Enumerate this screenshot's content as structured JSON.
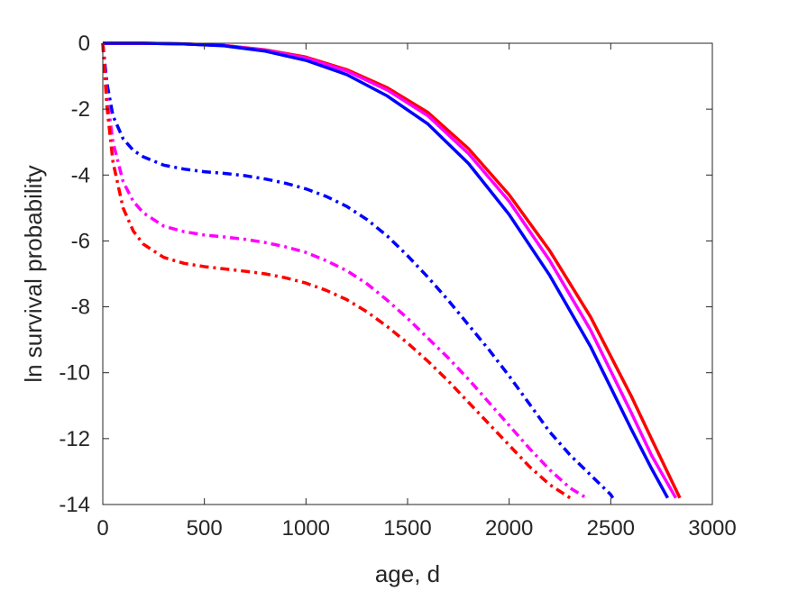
{
  "chart_data": {
    "type": "line",
    "title": "",
    "xlabel": "age, d",
    "ylabel": "ln survival probability",
    "xlim": [
      0,
      3000
    ],
    "ylim": [
      -14,
      0
    ],
    "xticks": [
      0,
      500,
      1000,
      1500,
      2000,
      2500,
      3000
    ],
    "yticks": [
      0,
      -2,
      -4,
      -6,
      -8,
      -10,
      -12,
      -14
    ],
    "grid": false,
    "legend": "none",
    "series": [
      {
        "color": "#ff0000",
        "style": "solid",
        "x": [
          0,
          200,
          400,
          600,
          800,
          1000,
          1200,
          1400,
          1600,
          1800,
          2000,
          2200,
          2400,
          2600,
          2700,
          2840
        ],
        "y": [
          0,
          0,
          -0.02,
          -0.07,
          -0.2,
          -0.42,
          -0.8,
          -1.35,
          -2.1,
          -3.2,
          -4.6,
          -6.3,
          -8.3,
          -10.7,
          -12.0,
          -13.8
        ]
      },
      {
        "color": "#ff00ff",
        "style": "solid",
        "x": [
          0,
          200,
          400,
          600,
          800,
          1000,
          1200,
          1400,
          1600,
          1800,
          2000,
          2200,
          2400,
          2600,
          2700,
          2820
        ],
        "y": [
          0,
          0,
          -0.02,
          -0.07,
          -0.21,
          -0.45,
          -0.84,
          -1.42,
          -2.2,
          -3.35,
          -4.8,
          -6.6,
          -8.7,
          -11.2,
          -12.5,
          -13.8
        ]
      },
      {
        "color": "#0000ff",
        "style": "solid",
        "x": [
          0,
          200,
          400,
          600,
          800,
          1000,
          1200,
          1400,
          1600,
          1800,
          2000,
          2200,
          2400,
          2600,
          2700,
          2780
        ],
        "y": [
          0,
          0,
          -0.02,
          -0.08,
          -0.24,
          -0.52,
          -0.95,
          -1.6,
          -2.45,
          -3.65,
          -5.2,
          -7.05,
          -9.2,
          -11.7,
          -12.9,
          -13.8
        ]
      },
      {
        "color": "#0000ff",
        "style": "dashdot",
        "x": [
          0,
          20,
          50,
          100,
          150,
          200,
          300,
          400,
          500,
          600,
          700,
          800,
          900,
          1000,
          1100,
          1200,
          1300,
          1400,
          1500,
          1600,
          1700,
          1800,
          1900,
          2000,
          2100,
          2200,
          2300,
          2400,
          2500,
          2510
        ],
        "y": [
          0,
          -1.2,
          -2.2,
          -2.9,
          -3.25,
          -3.45,
          -3.7,
          -3.82,
          -3.9,
          -3.95,
          -4.02,
          -4.12,
          -4.25,
          -4.42,
          -4.65,
          -4.95,
          -5.35,
          -5.85,
          -6.45,
          -7.1,
          -7.8,
          -8.55,
          -9.3,
          -10.1,
          -10.95,
          -11.8,
          -12.5,
          -13.1,
          -13.7,
          -13.8
        ]
      },
      {
        "color": "#ff00ff",
        "style": "dashdot",
        "x": [
          0,
          20,
          50,
          100,
          150,
          200,
          300,
          400,
          500,
          600,
          700,
          800,
          900,
          1000,
          1100,
          1200,
          1300,
          1400,
          1500,
          1600,
          1700,
          1800,
          1900,
          2000,
          2100,
          2200,
          2300,
          2380
        ],
        "y": [
          0,
          -1.6,
          -3.0,
          -4.2,
          -4.8,
          -5.15,
          -5.55,
          -5.72,
          -5.82,
          -5.88,
          -5.95,
          -6.05,
          -6.18,
          -6.35,
          -6.6,
          -6.9,
          -7.3,
          -7.8,
          -8.35,
          -8.95,
          -9.55,
          -10.2,
          -10.9,
          -11.6,
          -12.3,
          -12.95,
          -13.5,
          -13.8
        ]
      },
      {
        "color": "#ff0000",
        "style": "dashdot",
        "x": [
          0,
          20,
          50,
          100,
          150,
          200,
          300,
          400,
          500,
          600,
          700,
          800,
          900,
          1000,
          1100,
          1200,
          1300,
          1400,
          1500,
          1600,
          1700,
          1800,
          1900,
          2000,
          2100,
          2200,
          2300
        ],
        "y": [
          0,
          -1.9,
          -3.6,
          -5.0,
          -5.7,
          -6.1,
          -6.5,
          -6.68,
          -6.78,
          -6.85,
          -6.92,
          -7.0,
          -7.12,
          -7.28,
          -7.5,
          -7.78,
          -8.15,
          -8.6,
          -9.1,
          -9.65,
          -10.25,
          -10.9,
          -11.55,
          -12.2,
          -12.85,
          -13.4,
          -13.8
        ]
      }
    ]
  }
}
